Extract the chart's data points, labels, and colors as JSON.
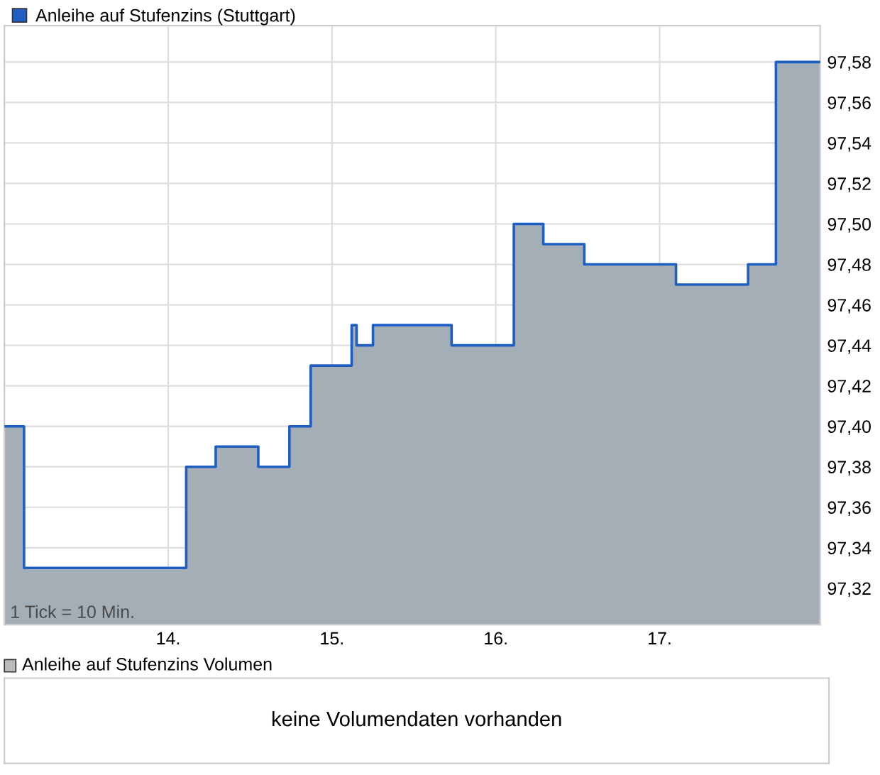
{
  "chart_data": [
    {
      "type": "area",
      "x": [
        13.0,
        13.12,
        13.12,
        14.11,
        14.11,
        14.29,
        14.29,
        14.55,
        14.55,
        14.74,
        14.74,
        14.87,
        14.87,
        15.12,
        15.12,
        15.15,
        15.15,
        15.25,
        15.25,
        15.73,
        15.73,
        16.11,
        16.11,
        16.29,
        16.29,
        16.54,
        16.54,
        17.1,
        17.1,
        17.54,
        17.54,
        17.71,
        17.71,
        17.98
      ],
      "series": [
        {
          "name": "Anleihe auf Stufenzins (Stuttgart)",
          "color": "#1f5fc4",
          "values": [
            97.4,
            97.4,
            97.33,
            97.33,
            97.38,
            97.38,
            97.39,
            97.39,
            97.38,
            97.38,
            97.4,
            97.4,
            97.43,
            97.43,
            97.45,
            97.45,
            97.44,
            97.44,
            97.45,
            97.45,
            97.44,
            97.44,
            97.5,
            97.5,
            97.49,
            97.49,
            97.48,
            97.48,
            97.47,
            97.47,
            97.48,
            97.48,
            97.58,
            97.58
          ]
        }
      ],
      "xlim": [
        13.0,
        17.98
      ],
      "xticks": [
        {
          "value": 14,
          "label": "14."
        },
        {
          "value": 15,
          "label": "15."
        },
        {
          "value": 16,
          "label": "16."
        },
        {
          "value": 17,
          "label": "17."
        }
      ],
      "ylim": [
        97.302,
        97.598
      ],
      "yticks": [
        {
          "value": 97.32,
          "label": "97,32"
        },
        {
          "value": 97.34,
          "label": "97,34"
        },
        {
          "value": 97.36,
          "label": "97,36"
        },
        {
          "value": 97.38,
          "label": "97,38"
        },
        {
          "value": 97.4,
          "label": "97,40"
        },
        {
          "value": 97.42,
          "label": "97,42"
        },
        {
          "value": 97.44,
          "label": "97,44"
        },
        {
          "value": 97.46,
          "label": "97,46"
        },
        {
          "value": 97.48,
          "label": "97,48"
        },
        {
          "value": 97.5,
          "label": "97,50"
        },
        {
          "value": 97.52,
          "label": "97,52"
        },
        {
          "value": 97.54,
          "label": "97,54"
        },
        {
          "value": 97.56,
          "label": "97,56"
        },
        {
          "value": 97.58,
          "label": "97,58"
        }
      ],
      "grid": true,
      "legend": "top left",
      "annotations": [
        "1 Tick = 10 Min."
      ]
    },
    {
      "type": "other",
      "title": "Anleihe auf Stufenzins Volumen",
      "annotations": [
        "keine Volumendaten vorhanden"
      ]
    }
  ]
}
